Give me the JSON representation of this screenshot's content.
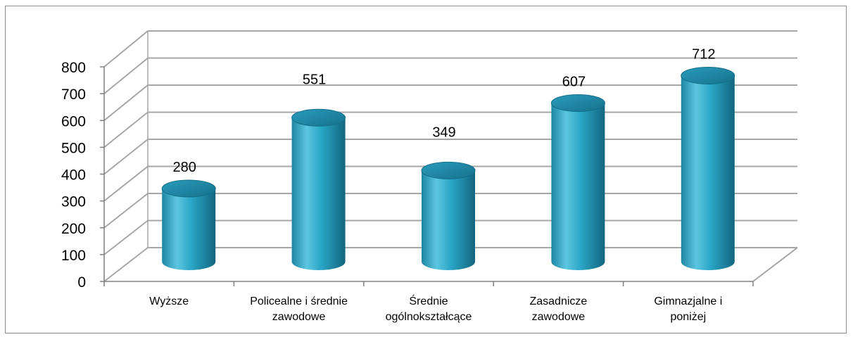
{
  "chart_data": {
    "type": "bar",
    "style": "3d-cylinder",
    "categories": [
      "Wyższe",
      "Policealne i średnie zawodowe",
      "Średnie ogólnokształcące",
      "Zasadnicze zawodowe",
      "Gimnazjalne i poniżej"
    ],
    "category_lines": [
      [
        "Wyższe"
      ],
      [
        "Policealne i średnie",
        "zawodowe"
      ],
      [
        "Średnie",
        "ogólnokształcące"
      ],
      [
        "Zasadnicze",
        "zawodowe"
      ],
      [
        "Gimnazjalne i",
        "poniżej"
      ]
    ],
    "values": [
      280,
      551,
      349,
      607,
      712
    ],
    "value_labels": [
      "280",
      "551",
      "349",
      "607",
      "712"
    ],
    "title": "",
    "xlabel": "",
    "ylabel": "",
    "ylim": [
      0,
      800
    ],
    "yticks": [
      0,
      100,
      200,
      300,
      400,
      500,
      600,
      700,
      800
    ],
    "grid": true,
    "legend": "none",
    "colors": {
      "bar": "#29a3c2",
      "bar_light": "#7fd3e8",
      "bar_dark": "#15708a",
      "grid": "#a6a6a6"
    }
  }
}
